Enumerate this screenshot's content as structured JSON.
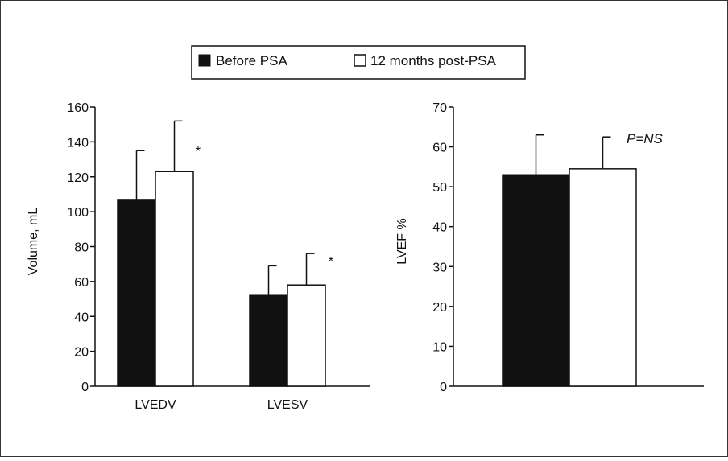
{
  "legend": {
    "items": [
      {
        "label": "Before PSA",
        "fill": "#111111"
      },
      {
        "label": "12 months post-PSA",
        "fill": "#ffffff"
      }
    ]
  },
  "chart_data": [
    {
      "type": "bar",
      "ylabel": "Volume, mL",
      "ylim": [
        0,
        160
      ],
      "yticks": [
        0,
        20,
        40,
        60,
        80,
        100,
        120,
        140,
        160
      ],
      "categories": [
        "LVEDV",
        "LVESV"
      ],
      "series": [
        {
          "name": "Before PSA",
          "values": [
            107,
            52
          ],
          "errors": [
            28,
            17
          ],
          "color": "#111111"
        },
        {
          "name": "12 months post-PSA",
          "values": [
            123,
            58
          ],
          "errors": [
            29,
            18
          ],
          "color": "#ffffff"
        }
      ],
      "annotations": [
        {
          "text": "*",
          "category": "LVEDV"
        },
        {
          "text": "*",
          "category": "LVESV"
        }
      ]
    },
    {
      "type": "bar",
      "ylabel": "LVEF %",
      "ylim": [
        0,
        70
      ],
      "yticks": [
        0,
        10,
        20,
        30,
        40,
        50,
        60,
        70
      ],
      "categories": [
        ""
      ],
      "series": [
        {
          "name": "Before PSA",
          "values": [
            53
          ],
          "errors": [
            10
          ],
          "color": "#111111"
        },
        {
          "name": "12 months post-PSA",
          "values": [
            54.5
          ],
          "errors": [
            8
          ],
          "color": "#ffffff"
        }
      ],
      "annotations": [
        {
          "text": "P=NS"
        }
      ]
    }
  ]
}
